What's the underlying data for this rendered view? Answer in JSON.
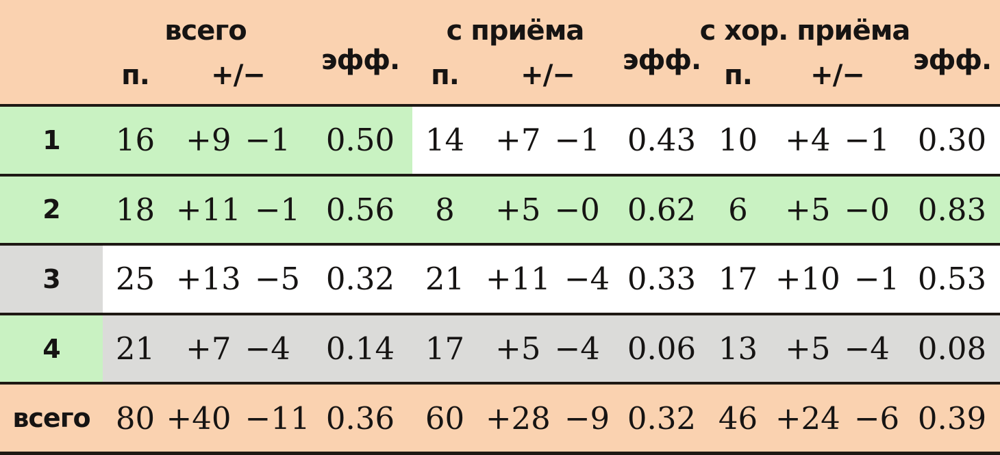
{
  "colors": {
    "peach": "#FAD2B0",
    "green": "#C9F2C2",
    "gray": "#DBDBD9",
    "line": "#1E1914",
    "text": "#161413"
  },
  "chart_data": {
    "type": "table",
    "title": "",
    "column_groups": [
      {
        "title": "всего",
        "columns": [
          "п.",
          "+/−",
          "эфф."
        ]
      },
      {
        "title": "с приёма",
        "columns": [
          "п.",
          "+/−",
          "эфф."
        ]
      },
      {
        "title": "с хор. приёма",
        "columns": [
          "п.",
          "+/−",
          "эфф."
        ]
      }
    ],
    "rows": [
      {
        "label": "1",
        "groups": [
          {
            "p": "16",
            "plus": "+9",
            "minus": "−1",
            "eff": "0.50"
          },
          {
            "p": "14",
            "plus": "+7",
            "minus": "−1",
            "eff": "0.43"
          },
          {
            "p": "10",
            "plus": "+4",
            "minus": "−1",
            "eff": "0.30"
          }
        ]
      },
      {
        "label": "2",
        "groups": [
          {
            "p": "18",
            "plus": "+11",
            "minus": "−1",
            "eff": "0.56"
          },
          {
            "p": "8",
            "plus": "+5",
            "minus": "−0",
            "eff": "0.62"
          },
          {
            "p": "6",
            "plus": "+5",
            "minus": "−0",
            "eff": "0.83"
          }
        ]
      },
      {
        "label": "3",
        "groups": [
          {
            "p": "25",
            "plus": "+13",
            "minus": "−5",
            "eff": "0.32"
          },
          {
            "p": "21",
            "plus": "+11",
            "minus": "−4",
            "eff": "0.33"
          },
          {
            "p": "17",
            "plus": "+10",
            "minus": "−1",
            "eff": "0.53"
          }
        ]
      },
      {
        "label": "4",
        "groups": [
          {
            "p": "21",
            "plus": "+7",
            "minus": "−4",
            "eff": "0.14"
          },
          {
            "p": "17",
            "plus": "+5",
            "minus": "−4",
            "eff": "0.06"
          },
          {
            "p": "13",
            "plus": "+5",
            "minus": "−4",
            "eff": "0.08"
          }
        ]
      },
      {
        "label": "всего",
        "groups": [
          {
            "p": "80",
            "plus": "+40",
            "minus": "−11",
            "eff": "0.36"
          },
          {
            "p": "60",
            "plus": "+28",
            "minus": "−9",
            "eff": "0.32"
          },
          {
            "p": "46",
            "plus": "+24",
            "minus": "−6",
            "eff": "0.39"
          }
        ]
      }
    ],
    "row_highlights": [
      "label+group1 green, rest white",
      "all green",
      "label gray, rest white",
      "label green, rest gray",
      "all peach (totals)"
    ]
  }
}
